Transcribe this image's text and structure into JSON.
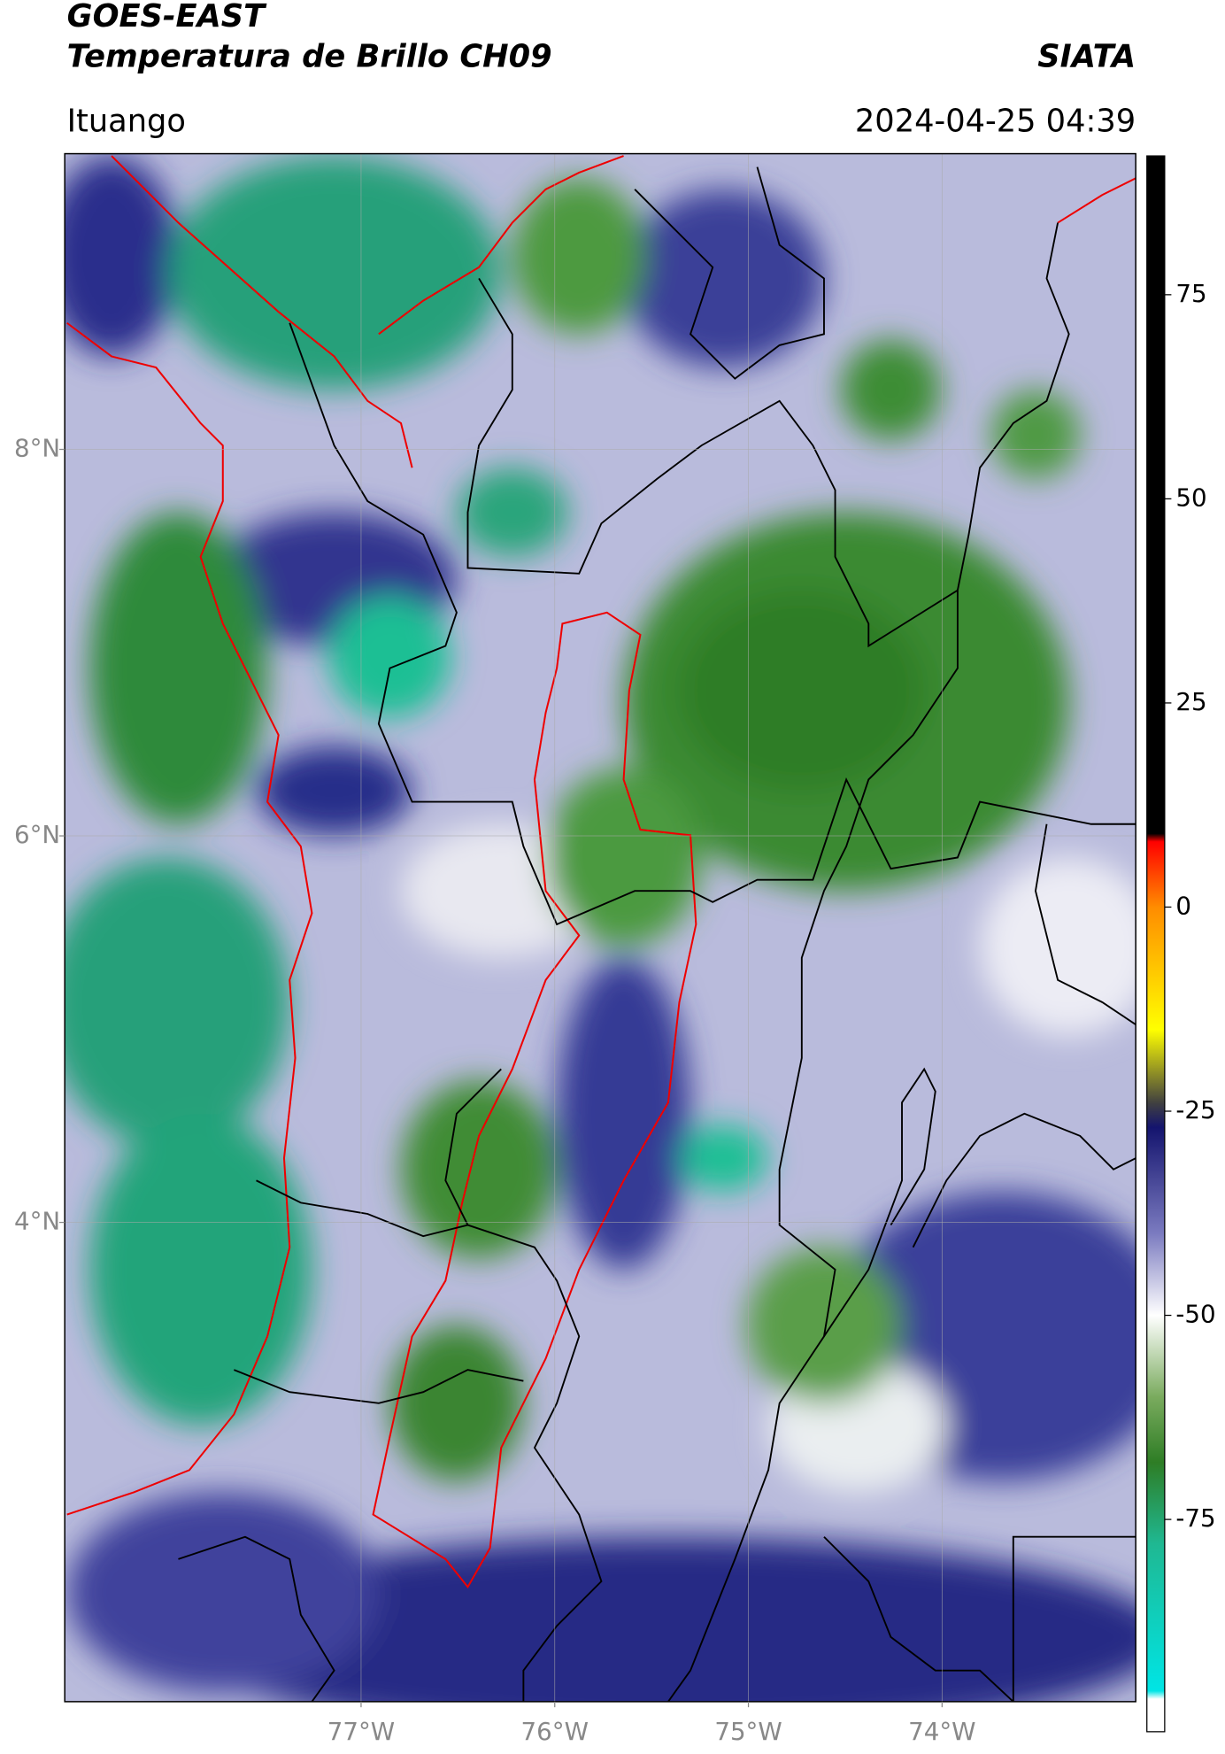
{
  "header": {
    "satellite": "GOES-EAST",
    "product": "Temperatura de Brillo CH09",
    "brand": "SIATA",
    "region": "Ituango",
    "timestamp": "2024-04-25 04:39"
  },
  "map": {
    "lon_range": [
      -78.53,
      -73.0
    ],
    "lat_range": [
      1.52,
      9.53
    ],
    "grid": true,
    "lat_ticks": [
      {
        "value": 4,
        "label": "4°N"
      },
      {
        "value": 6,
        "label": "6°N"
      },
      {
        "value": 8,
        "label": "8°N"
      }
    ],
    "lon_ticks": [
      {
        "value": -77,
        "label": "77°W"
      },
      {
        "value": -76,
        "label": "76°W"
      },
      {
        "value": -75,
        "label": "75°W"
      },
      {
        "value": -74,
        "label": "74°W"
      }
    ]
  },
  "colorbar": {
    "range": [
      -101,
      92
    ],
    "ticks": [
      -75,
      -50,
      -25,
      0,
      25,
      50,
      75
    ],
    "colormap": [
      {
        "value": 92,
        "color": "#000000"
      },
      {
        "value": 9,
        "color": "#000000"
      },
      {
        "value": 8,
        "color": "#ff0000"
      },
      {
        "value": 0,
        "color": "#ff8c00"
      },
      {
        "value": -15,
        "color": "#ffff00"
      },
      {
        "value": -24,
        "color": "#404040"
      },
      {
        "value": -27,
        "color": "#14146e"
      },
      {
        "value": -40,
        "color": "#7b7bc0"
      },
      {
        "value": -50,
        "color": "#ffffff"
      },
      {
        "value": -60,
        "color": "#7aab5e"
      },
      {
        "value": -68,
        "color": "#2e7d25"
      },
      {
        "value": -78,
        "color": "#1fb892"
      },
      {
        "value": -96,
        "color": "#00e5e5"
      },
      {
        "value": -97,
        "color": "#ffffff"
      },
      {
        "value": -101,
        "color": "#ffffff"
      }
    ]
  }
}
